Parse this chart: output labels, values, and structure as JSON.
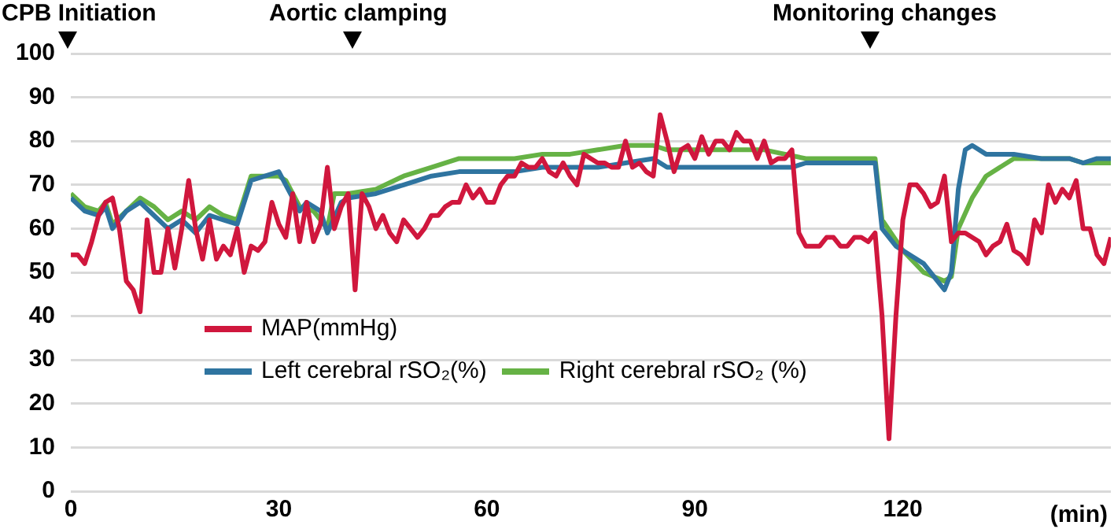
{
  "chart_data": {
    "type": "line",
    "xlabel": "(min)",
    "xlim": [
      0,
      150
    ],
    "xticks": [
      0,
      30,
      60,
      90,
      120
    ],
    "ylim": [
      0,
      100
    ],
    "yticks": [
      0,
      10,
      20,
      30,
      40,
      50,
      60,
      70,
      80,
      90,
      100
    ],
    "grid": "y",
    "legend": "bottom left",
    "marker": "none",
    "line_style": "solid",
    "annotations": [
      "CPB Initiation",
      "Aortic clamping",
      "Monitoring changes"
    ],
    "series": [
      {
        "name": "MAP(mmHg)",
        "color": "#d0173d",
        "x": [
          0,
          1,
          2,
          3,
          4,
          5,
          6,
          7,
          8,
          9,
          10,
          11,
          12,
          13,
          14,
          15,
          16,
          17,
          18,
          19,
          20,
          21,
          22,
          23,
          24,
          25,
          26,
          27,
          28,
          29,
          30,
          31,
          32,
          33,
          34,
          35,
          36,
          37,
          38,
          39,
          40,
          41,
          42,
          43,
          44,
          45,
          46,
          47,
          48,
          49,
          50,
          51,
          52,
          53,
          54,
          55,
          56,
          57,
          58,
          59,
          60,
          61,
          62,
          63,
          64,
          65,
          66,
          67,
          68,
          69,
          70,
          71,
          72,
          73,
          74,
          75,
          76,
          77,
          78,
          79,
          80,
          81,
          82,
          83,
          84,
          85,
          86,
          87,
          88,
          89,
          90,
          91,
          92,
          93,
          94,
          95,
          96,
          97,
          98,
          99,
          100,
          101,
          102,
          103,
          104,
          105,
          106,
          107,
          108,
          109,
          110,
          111,
          112,
          113,
          114,
          115,
          116,
          117,
          118,
          119,
          120,
          121,
          122,
          123,
          124,
          125,
          126,
          127,
          128,
          129,
          130,
          131,
          132,
          133,
          134,
          135,
          136,
          137,
          138,
          139,
          140,
          141,
          142,
          143,
          144,
          145,
          146,
          147,
          148,
          149,
          150
        ],
        "values": [
          54,
          54,
          52,
          57,
          63,
          66,
          67,
          60,
          48,
          46,
          41,
          62,
          50,
          50,
          60,
          51,
          60,
          71,
          60,
          53,
          62,
          53,
          56,
          54,
          60,
          50,
          56,
          55,
          57,
          66,
          61,
          58,
          68,
          57,
          66,
          57,
          61,
          74,
          60,
          65,
          68,
          46,
          68,
          65,
          60,
          63,
          59,
          57,
          62,
          60,
          58,
          60,
          63,
          63,
          65,
          66,
          66,
          70,
          67,
          69,
          66,
          66,
          70,
          72,
          72,
          75,
          74,
          74,
          76,
          73,
          72,
          75,
          72,
          70,
          77,
          76,
          75,
          75,
          74,
          74,
          80,
          74,
          75,
          73,
          72,
          86,
          80,
          73,
          78,
          79,
          76,
          81,
          77,
          80,
          80,
          78,
          82,
          80,
          80,
          76,
          80,
          75,
          76,
          76,
          78,
          59,
          56,
          56,
          56,
          58,
          58,
          56,
          56,
          58,
          58,
          57,
          59,
          40,
          12,
          40,
          62,
          70,
          70,
          68,
          65,
          66,
          72,
          57,
          59,
          59,
          58,
          57,
          54,
          56,
          57,
          61,
          55,
          54,
          52,
          62,
          59,
          70,
          66,
          69,
          67,
          71,
          60,
          60,
          54,
          52,
          58
        ]
      },
      {
        "name": "Left cerebral rSO₂(%)",
        "color": "#2f74a0",
        "x": [
          0,
          2,
          4,
          5,
          6,
          8,
          10,
          12,
          14,
          16,
          18,
          20,
          22,
          24,
          26,
          28,
          30,
          31,
          33,
          34,
          36,
          37,
          39,
          40,
          44,
          48,
          52,
          56,
          60,
          64,
          68,
          72,
          76,
          80,
          84,
          86,
          90,
          96,
          102,
          104,
          106,
          116,
          117,
          119,
          121,
          123,
          125,
          126,
          127,
          128,
          129,
          130,
          132,
          136,
          140,
          144,
          146,
          148,
          150
        ],
        "values": [
          67,
          64,
          63,
          65,
          60,
          64,
          66,
          63,
          60,
          62,
          59,
          63,
          62,
          61,
          71,
          72,
          73,
          70,
          64,
          66,
          64,
          59,
          66,
          67,
          68,
          70,
          72,
          73,
          73,
          73,
          74,
          74,
          74,
          75,
          76,
          74,
          74,
          74,
          74,
          74,
          75,
          75,
          60,
          56,
          54,
          52,
          48,
          46,
          50,
          69,
          78,
          79,
          77,
          77,
          76,
          76,
          75,
          76,
          76
        ]
      },
      {
        "name": "Right cerebral rSO₂ (%)",
        "color": "#66b245",
        "x": [
          0,
          2,
          4,
          5,
          6,
          8,
          10,
          12,
          14,
          16,
          18,
          20,
          22,
          24,
          26,
          28,
          30,
          31,
          33,
          35,
          37,
          38,
          40,
          44,
          48,
          52,
          56,
          60,
          64,
          68,
          72,
          76,
          80,
          84,
          86,
          90,
          96,
          100,
          103,
          106,
          116,
          117,
          120,
          123,
          126,
          127,
          128,
          130,
          132,
          134,
          136,
          140,
          144,
          146,
          150
        ],
        "values": [
          68,
          65,
          64,
          66,
          61,
          64,
          67,
          65,
          62,
          64,
          62,
          65,
          63,
          62,
          72,
          72,
          72,
          71,
          65,
          64,
          60,
          68,
          68,
          69,
          72,
          74,
          76,
          76,
          76,
          77,
          77,
          78,
          79,
          79,
          78,
          78,
          78,
          78,
          77,
          76,
          76,
          62,
          55,
          50,
          48,
          49,
          60,
          67,
          72,
          74,
          76,
          76,
          76,
          75,
          75
        ]
      }
    ]
  }
}
